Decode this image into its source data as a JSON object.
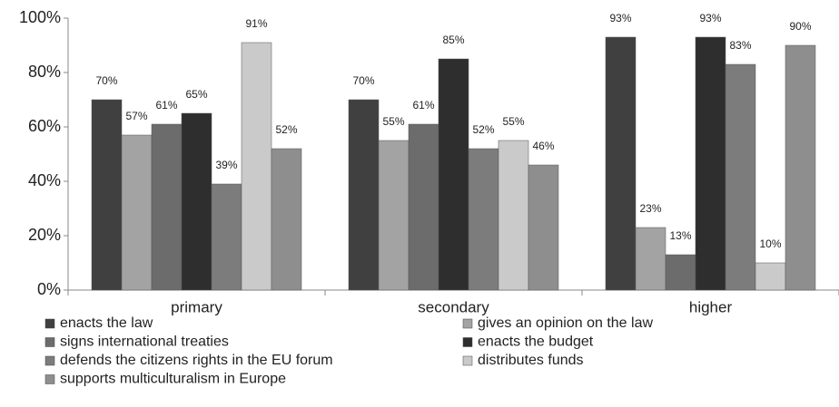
{
  "chart_data": {
    "type": "bar",
    "categories": [
      "primary",
      "secondary",
      "higher"
    ],
    "series": [
      {
        "name": "enacts the law",
        "color": "#404040",
        "values": [
          70,
          70,
          93
        ],
        "value_labels": [
          "70%",
          "70%",
          "93%"
        ]
      },
      {
        "name": "gives an opinion on the law",
        "color": "#a3a3a3",
        "values": [
          57,
          55,
          23
        ],
        "value_labels": [
          "57%",
          "55%",
          "23%"
        ]
      },
      {
        "name": "signs international treaties",
        "color": "#6c6c6c",
        "values": [
          61,
          61,
          13
        ],
        "value_labels": [
          "61%",
          "61%",
          "13%"
        ]
      },
      {
        "name": "enacts the budget",
        "color": "#2e2e2e",
        "values": [
          65,
          85,
          93
        ],
        "value_labels": [
          "65%",
          "85%",
          "93%"
        ]
      },
      {
        "name": "defends the citizens rights in the EU forum",
        "color": "#7c7c7c",
        "values": [
          39,
          52,
          83
        ],
        "value_labels": [
          "39%",
          "52%",
          "83%"
        ]
      },
      {
        "name": "distributes funds",
        "color": "#cacaca",
        "values": [
          91,
          55,
          10
        ],
        "value_labels": [
          "91%",
          "55%",
          "10%"
        ]
      },
      {
        "name": "supports multiculturalism in Europe",
        "color": "#8e8e8e",
        "values": [
          52,
          46,
          90
        ],
        "value_labels": [
          "52%",
          "46%",
          "90%"
        ]
      }
    ],
    "ylim": [
      0,
      100
    ],
    "yticks": [
      {
        "value": 0,
        "label": "0%"
      },
      {
        "value": 20,
        "label": "20%"
      },
      {
        "value": 40,
        "label": "40%"
      },
      {
        "value": 60,
        "label": "60%"
      },
      {
        "value": 80,
        "label": "80%"
      },
      {
        "value": 100,
        "label": "100%"
      }
    ],
    "legend": "bottom"
  }
}
